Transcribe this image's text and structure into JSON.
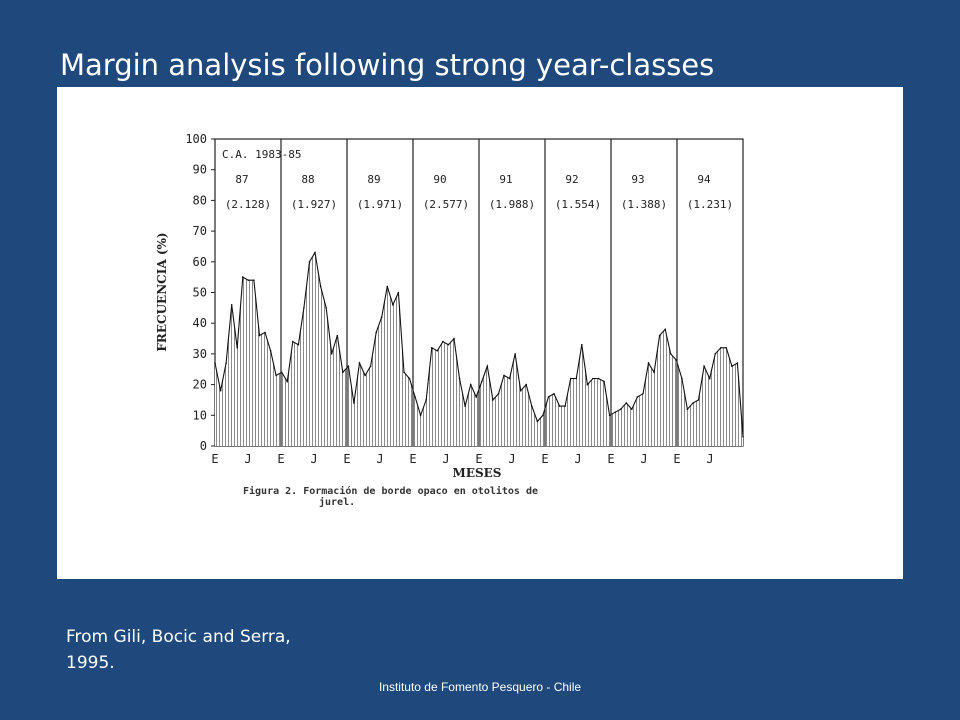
{
  "slide": {
    "title": "Margin analysis following strong year-classes",
    "citation_line1": "From Gili, Bocic and Serra,",
    "citation_line2": "1995.",
    "footer": "Instituto de Fomento Pesquero - Chile",
    "background_color": "#1f497d"
  },
  "chart_data": {
    "type": "area",
    "title": "",
    "annotation": "C.A. 1983-85",
    "xlabel": "MESES",
    "ylabel": "FRECUENCIA (%)",
    "ylim": [
      0,
      100
    ],
    "yticks": [
      "0",
      "10",
      "20",
      "30",
      "40",
      "50",
      "60",
      "70",
      "80",
      "90",
      "100"
    ],
    "xticks": [
      "E",
      "J",
      "E",
      "J",
      "E",
      "J",
      "E",
      "J",
      "E",
      "J",
      "E",
      "J",
      "E",
      "J",
      "E",
      "J"
    ],
    "caption_line1": "Figura 2. Formación de borde opaco en otolitos de",
    "caption_line2": "jurel.",
    "years": [
      {
        "year": "87",
        "count": "(2.128)"
      },
      {
        "year": "88",
        "count": "(1.927)"
      },
      {
        "year": "89",
        "count": "(1.971)"
      },
      {
        "year": "90",
        "count": "(2.577)"
      },
      {
        "year": "91",
        "count": "(1.988)"
      },
      {
        "year": "92",
        "count": "(1.554)"
      },
      {
        "year": "93",
        "count": "(1.388)"
      },
      {
        "year": "94",
        "count": "(1.231)"
      }
    ],
    "series": [
      {
        "values": [
          27,
          18,
          27,
          46,
          32,
          55,
          54,
          54,
          36,
          37,
          31,
          23,
          24,
          21,
          34,
          33,
          45,
          60,
          63,
          52,
          45,
          30,
          36,
          24,
          26,
          14,
          27,
          23,
          26,
          37,
          42,
          52,
          46,
          50,
          24,
          22,
          16,
          10,
          15,
          32,
          31,
          34,
          33,
          35,
          22,
          13,
          20,
          16,
          21,
          26,
          15,
          17,
          23,
          22,
          30,
          18,
          20,
          13,
          8,
          10,
          16,
          17,
          13,
          13,
          22,
          22,
          33,
          20,
          22,
          22,
          21,
          10,
          11,
          12,
          14,
          12,
          16,
          17,
          27,
          24,
          36,
          38,
          30,
          28,
          22,
          12,
          14,
          15,
          26,
          22,
          30,
          32,
          32,
          26,
          27,
          3
        ]
      }
    ]
  }
}
